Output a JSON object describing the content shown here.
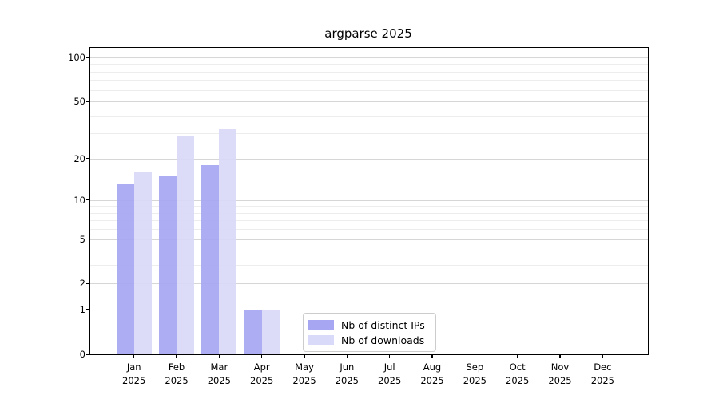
{
  "figure": {
    "title": "argparse 2025",
    "background_color": "#ffffff"
  },
  "chart_data": {
    "type": "bar",
    "title": "argparse 2025",
    "categories": [
      "Jan 2025",
      "Feb 2025",
      "Mar 2025",
      "Apr 2025",
      "May 2025",
      "Jun 2025",
      "Jul 2025",
      "Aug 2025",
      "Sep 2025",
      "Oct 2025",
      "Nov 2025",
      "Dec 2025"
    ],
    "series": [
      {
        "name": "Nb of distinct IPs",
        "color": "#a6a6f2",
        "values": [
          13,
          15,
          18,
          1,
          null,
          null,
          null,
          null,
          null,
          null,
          null,
          null
        ]
      },
      {
        "name": "Nb of downloads",
        "color": "#d9d9f9",
        "values": [
          16,
          29,
          32,
          1,
          null,
          null,
          null,
          null,
          null,
          null,
          null,
          null
        ]
      }
    ],
    "xlabel": "",
    "ylabel": "",
    "y_scale": "log1p",
    "ylim": [
      0,
      116
    ],
    "y_ticks": [
      0,
      1,
      2,
      5,
      10,
      20,
      50,
      100
    ],
    "y_minor_gridlines": [
      3,
      4,
      6,
      7,
      8,
      9,
      30,
      40,
      60,
      70,
      80,
      90
    ],
    "grid": "on",
    "legend_position": "lower center"
  },
  "colors": {
    "major_grid": "#d6d6d6",
    "minor_grid": "#ededed",
    "axis": "#000000"
  }
}
